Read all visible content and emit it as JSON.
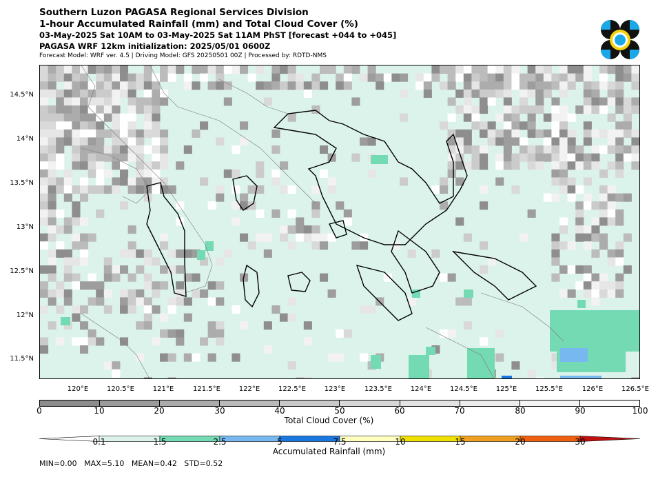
{
  "header": {
    "line1": "Southern Luzon PAGASA Regional Services Division",
    "line2": "1-hour Accumulated Rainfall (mm) and Total Cloud Cover (%)",
    "line3": "03-May-2025 Sat 10AM to 03-May-2025 Sat 11AM PhST [forecast +044 to +045]",
    "line4": "PAGASA WRF 12km initialization: 2025/05/01 0600Z",
    "line5": "Forecast Model: WRF ver. 4.5 | Driving Model: GFS 20250501 00Z | Processed by: RDTD-NMS"
  },
  "map": {
    "lat_labels": [
      "14.5°N",
      "14°N",
      "13.5°N",
      "13°N",
      "12.5°N",
      "12°N",
      "11.5°N"
    ],
    "lon_labels": [
      "120°E",
      "120.5°E",
      "121°E",
      "121.5°E",
      "122°E",
      "122.5°E",
      "123°E",
      "123.5°E",
      "124°E",
      "124.5°E",
      "125°E",
      "125.5°E",
      "126°E",
      "126.5°E"
    ],
    "ocean_color": "#dcf3ec",
    "land_outline_color": "#000000"
  },
  "cloud_colorbar": {
    "label": "Total Cloud Cover (%)",
    "ticks": [
      "0",
      "10",
      "20",
      "30",
      "40",
      "50",
      "60",
      "70",
      "80",
      "90",
      "100"
    ],
    "colors": [
      "#8c8c8c",
      "#9b9b9b",
      "#ababab",
      "#bababa",
      "#c9c9c9",
      "#d8d8d8",
      "#e3e3e3",
      "#ececec",
      "#f4f4f4",
      "#fbfbfb"
    ]
  },
  "rain_colorbar": {
    "label": "Accumulated Rainfall (mm)",
    "ticks": [
      "0.1",
      "1.5",
      "2.5",
      "5",
      "7.5",
      "10",
      "15",
      "20",
      "30"
    ],
    "colors": [
      "#ffffff",
      "#dcf3ec",
      "#74dab4",
      "#78b8f0",
      "#1878e0",
      "#ffffc0",
      "#f0e000",
      "#f0a020",
      "#f06010",
      "#c01010"
    ]
  },
  "stats": {
    "text": "MIN=0.00   MAX=5.10   MEAN=0.42   STD=0.52"
  }
}
